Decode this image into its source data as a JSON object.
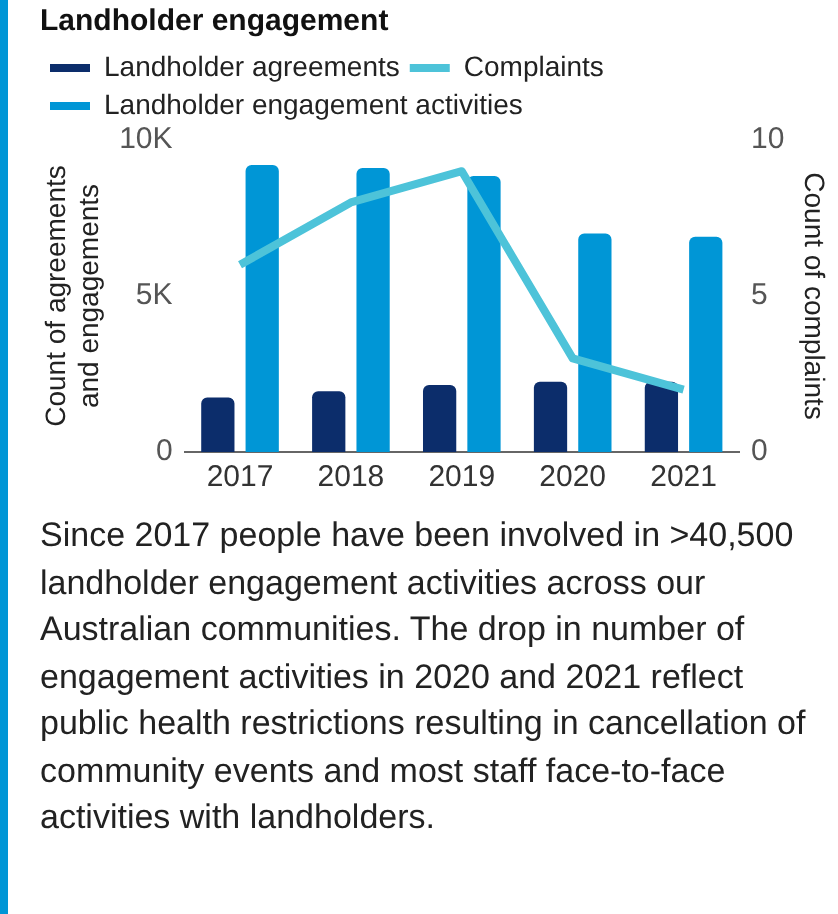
{
  "chart_data": {
    "type": "bar",
    "title": "Landholder engagement",
    "categories": [
      "2017",
      "2018",
      "2019",
      "2020",
      "2021"
    ],
    "ylabel": "Count of agreements\nand engagements",
    "y2label": "Count of complaints",
    "ylim": [
      0,
      10000
    ],
    "yticks": [
      0,
      {
        "value": 5000,
        "label": "5K"
      },
      {
        "value": 10000,
        "label": "10K"
      }
    ],
    "y2lim": [
      0,
      10
    ],
    "y2ticks": [
      0,
      5,
      10
    ],
    "series": [
      {
        "name": "Landholder agreements",
        "color": "#0c2d6b",
        "values": [
          1750,
          1950,
          2150,
          2250,
          2250
        ]
      },
      {
        "name": "Complaints",
        "type": "line",
        "axis": "y2",
        "color": "#4dc3d9",
        "values": [
          6,
          8,
          9,
          3,
          2
        ]
      },
      {
        "name": "Landholder engagement activities",
        "color": "#0096d6",
        "values": [
          9200,
          9100,
          8850,
          7000,
          6900
        ]
      }
    ],
    "grid": false,
    "legend": "top left",
    "marker": "none",
    "line_style": "solid",
    "annotations": [
      "Since 2017 people have been involved in >40,500 landholder engagement activities across our Australian communities. The drop in number of engagement activities in 2020 and 2021 reflect public health restrictions resulting in cancellation of community events and most staff face-to-face activities with landholders."
    ]
  }
}
